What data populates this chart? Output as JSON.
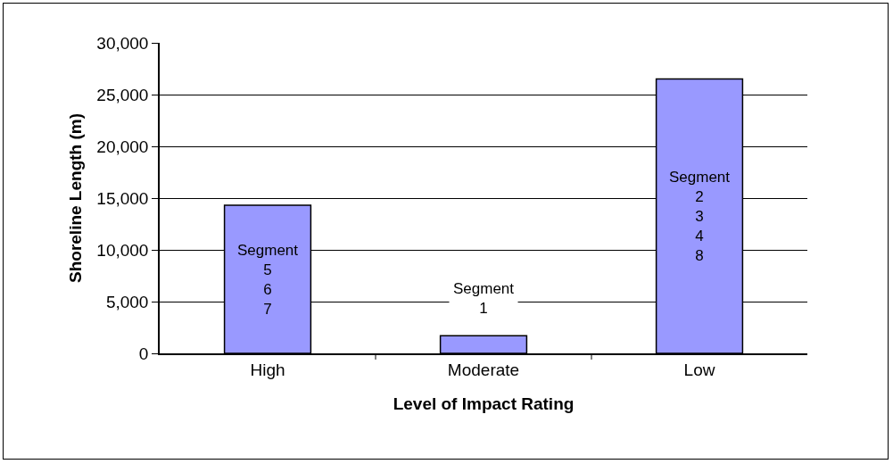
{
  "chart_data": {
    "type": "bar",
    "xlabel": "Level of Impact Rating",
    "ylabel": "Shoreline Length (m)",
    "categories": [
      "High",
      "Moderate",
      "Low"
    ],
    "values": [
      14300,
      1700,
      26500
    ],
    "color": "#9999ff",
    "ylim": [
      0,
      30000
    ],
    "yticks": [
      {
        "value": 0,
        "label": "0"
      },
      {
        "value": 5000,
        "label": "5,000"
      },
      {
        "value": 10000,
        "label": "10,000"
      },
      {
        "value": 15000,
        "label": "15,000"
      },
      {
        "value": 20000,
        "label": "20,000"
      },
      {
        "value": 25000,
        "label": "25,000"
      },
      {
        "value": 30000,
        "label": "30,000"
      }
    ],
    "grid": "y",
    "legend": false,
    "annotations": [
      "Segment\n5\n6\n7",
      "Segment\n1",
      "Segment\n2\n3\n4\n8"
    ]
  }
}
